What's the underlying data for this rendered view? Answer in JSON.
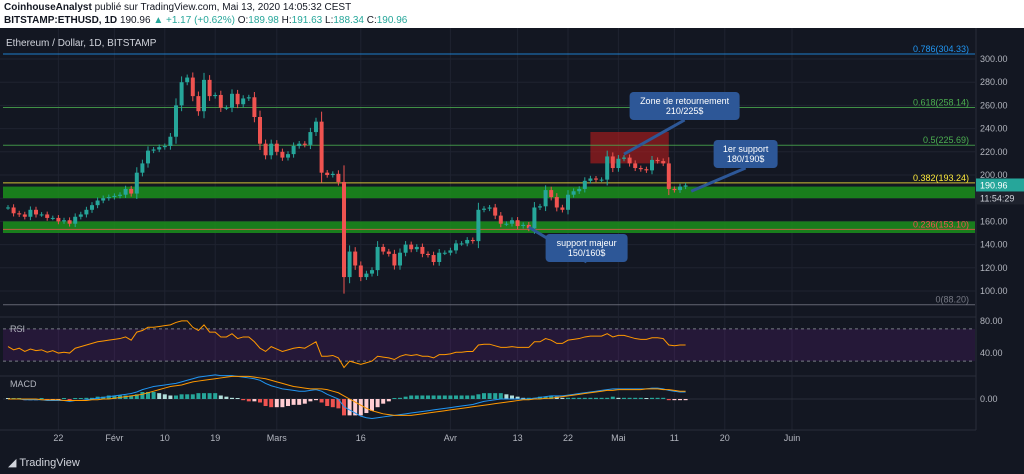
{
  "header": {
    "author": "CoinhouseAnalyst",
    "published": "publié sur TradingView.com, Mai 13, 2020 14:05:32 CEST",
    "symbol": "BITSTAMP:ETHUSD, 1D",
    "last": "190.96",
    "change": "+1.17 (+0.62%)",
    "o_label": "O:",
    "o": "189.98",
    "h_label": "H:",
    "h": "191.63",
    "l_label": "L:",
    "l": "188.34",
    "c_label": "C:",
    "c": "190.96"
  },
  "chart_title": "Ethereum / Dollar, 1D, BITSTAMP",
  "footer": {
    "brand": "TradingView"
  },
  "colors": {
    "bg": "#131722",
    "up": "#26a69a",
    "down": "#ef5350",
    "zone": "#1b8f1b",
    "fib": "#2196f3",
    "callout": "#2d5797"
  },
  "chart_data": {
    "type": "candlestick",
    "title": "Ethereum / Dollar, 1D, BITSTAMP",
    "ylim": [
      80,
      310
    ],
    "y_ticks": [
      100,
      120,
      140,
      160,
      180,
      200,
      220,
      240,
      260,
      280,
      300
    ],
    "y_tick_labels": [
      "100.00",
      "120.00",
      "140.00",
      "160.00",
      "180.00",
      "200.00",
      "220.00",
      "240.00",
      "260.00",
      "280.00",
      "300.00"
    ],
    "x_labels": [
      "22",
      "Févr",
      "10",
      "19",
      "Mars",
      "16",
      "Avr",
      "13",
      "22",
      "Mai",
      "11",
      "20",
      "Juin"
    ],
    "x_label_dates": [
      "2020-01-22",
      "2020-02-01",
      "2020-02-10",
      "2020-02-19",
      "2020-03-01",
      "2020-03-16",
      "2020-04-01",
      "2020-04-13",
      "2020-04-22",
      "2020-05-01",
      "2020-05-11",
      "2020-05-20",
      "2020-06-01"
    ],
    "closes": [
      [
        "2020-01-13",
        172
      ],
      [
        "2020-01-14",
        167
      ],
      [
        "2020-01-15",
        166
      ],
      [
        "2020-01-16",
        164
      ],
      [
        "2020-01-17",
        170
      ],
      [
        "2020-01-18",
        166
      ],
      [
        "2020-01-19",
        166
      ],
      [
        "2020-01-20",
        163
      ],
      [
        "2020-01-21",
        163
      ],
      [
        "2020-01-22",
        160
      ],
      [
        "2020-01-23",
        161
      ],
      [
        "2020-01-24",
        158
      ],
      [
        "2020-01-25",
        164
      ],
      [
        "2020-01-26",
        166
      ],
      [
        "2020-01-27",
        170
      ],
      [
        "2020-01-28",
        174
      ],
      [
        "2020-01-29",
        178
      ],
      [
        "2020-01-30",
        180
      ],
      [
        "2020-01-31",
        181
      ],
      [
        "2020-02-01",
        182
      ],
      [
        "2020-02-02",
        183
      ],
      [
        "2020-02-03",
        188
      ],
      [
        "2020-02-04",
        184
      ],
      [
        "2020-02-05",
        202
      ],
      [
        "2020-02-06",
        210
      ],
      [
        "2020-02-07",
        221
      ],
      [
        "2020-02-08",
        222
      ],
      [
        "2020-02-09",
        224
      ],
      [
        "2020-02-10",
        225
      ],
      [
        "2020-02-11",
        233
      ],
      [
        "2020-02-12",
        260
      ],
      [
        "2020-02-13",
        280
      ],
      [
        "2020-02-14",
        284
      ],
      [
        "2020-02-15",
        268
      ],
      [
        "2020-02-16",
        255
      ],
      [
        "2020-02-17",
        282
      ],
      [
        "2020-02-18",
        268
      ],
      [
        "2020-02-19",
        269
      ],
      [
        "2020-02-20",
        258
      ],
      [
        "2020-02-21",
        258
      ],
      [
        "2020-02-22",
        270
      ],
      [
        "2020-02-23",
        261
      ],
      [
        "2020-02-24",
        266
      ],
      [
        "2020-02-25",
        267
      ],
      [
        "2020-02-26",
        250
      ],
      [
        "2020-02-27",
        227
      ],
      [
        "2020-02-28",
        217
      ],
      [
        "2020-02-29",
        227
      ],
      [
        "2020-03-01",
        220
      ],
      [
        "2020-03-02",
        215
      ],
      [
        "2020-03-03",
        218
      ],
      [
        "2020-03-04",
        225
      ],
      [
        "2020-03-05",
        227
      ],
      [
        "2020-03-06",
        226
      ],
      [
        "2020-03-07",
        237
      ],
      [
        "2020-03-08",
        246
      ],
      [
        "2020-03-09",
        202
      ],
      [
        "2020-03-10",
        200
      ],
      [
        "2020-03-11",
        201
      ],
      [
        "2020-03-12",
        194
      ],
      [
        "2020-03-13",
        112
      ],
      [
        "2020-03-14",
        134
      ],
      [
        "2020-03-15",
        122
      ],
      [
        "2020-03-16",
        112
      ],
      [
        "2020-03-17",
        115
      ],
      [
        "2020-03-18",
        118
      ],
      [
        "2020-03-19",
        138
      ],
      [
        "2020-03-20",
        134
      ],
      [
        "2020-03-21",
        132
      ],
      [
        "2020-03-22",
        122
      ],
      [
        "2020-03-23",
        133
      ],
      [
        "2020-03-24",
        140
      ],
      [
        "2020-03-25",
        136
      ],
      [
        "2020-03-26",
        138
      ],
      [
        "2020-03-27",
        132
      ],
      [
        "2020-03-28",
        131
      ],
      [
        "2020-03-29",
        125
      ],
      [
        "2020-03-30",
        133
      ],
      [
        "2020-03-31",
        133
      ],
      [
        "2020-04-01",
        135
      ],
      [
        "2020-04-02",
        141
      ],
      [
        "2020-04-03",
        141
      ],
      [
        "2020-04-04",
        144
      ],
      [
        "2020-04-05",
        143
      ],
      [
        "2020-04-06",
        170
      ],
      [
        "2020-04-07",
        171
      ],
      [
        "2020-04-08",
        172
      ],
      [
        "2020-04-09",
        165
      ],
      [
        "2020-04-10",
        158
      ],
      [
        "2020-04-11",
        158
      ],
      [
        "2020-04-12",
        161
      ],
      [
        "2020-04-13",
        156
      ],
      [
        "2020-04-14",
        157
      ],
      [
        "2020-04-15",
        154
      ],
      [
        "2020-04-16",
        172
      ],
      [
        "2020-04-17",
        173
      ],
      [
        "2020-04-18",
        187
      ],
      [
        "2020-04-19",
        181
      ],
      [
        "2020-04-20",
        172
      ],
      [
        "2020-04-21",
        170
      ],
      [
        "2020-04-22",
        183
      ],
      [
        "2020-04-23",
        186
      ],
      [
        "2020-04-24",
        188
      ],
      [
        "2020-04-25",
        195
      ],
      [
        "2020-04-26",
        197
      ],
      [
        "2020-04-27",
        196
      ],
      [
        "2020-04-28",
        196
      ],
      [
        "2020-04-29",
        216
      ],
      [
        "2020-04-30",
        206
      ],
      [
        "2020-05-01",
        214
      ],
      [
        "2020-05-02",
        215
      ],
      [
        "2020-05-03",
        210
      ],
      [
        "2020-05-04",
        206
      ],
      [
        "2020-05-05",
        205
      ],
      [
        "2020-05-06",
        204
      ],
      [
        "2020-05-07",
        213
      ],
      [
        "2020-05-08",
        212
      ],
      [
        "2020-05-09",
        210
      ],
      [
        "2020-05-10",
        188
      ],
      [
        "2020-05-11",
        187
      ],
      [
        "2020-05-12",
        190
      ],
      [
        "2020-05-13",
        191
      ]
    ],
    "fib_levels": [
      {
        "ratio": "0.786",
        "price": 304.33,
        "label": "0.786(304.33)"
      },
      {
        "ratio": "0.618",
        "price": 258.14,
        "label": "0.618(258.14)"
      },
      {
        "ratio": "0.5",
        "price": 225.69,
        "label": "0.5(225.69)"
      },
      {
        "ratio": "0.382",
        "price": 193.24,
        "label": "0.382(193.24)"
      },
      {
        "ratio": "0.236",
        "price": 153.1,
        "label": "0.236(153.10)"
      },
      {
        "ratio": "0",
        "price": 88.2,
        "label": "0(88.20)"
      }
    ],
    "support_zones": [
      {
        "low": 180,
        "high": 190,
        "label": "1er support\n180/190$"
      },
      {
        "low": 150,
        "high": 160,
        "label": "support majeur\n150/160$"
      }
    ],
    "reversal_zone": {
      "low": 210,
      "high": 225,
      "label": "Zone de retournement\n210/225$"
    },
    "price_tag": {
      "value": "190.96",
      "timer": "11:54:29"
    },
    "rsi": {
      "label": "RSI",
      "levels": [
        70,
        30
      ],
      "y_tick_labels": [
        "80.00",
        "40.00"
      ],
      "values": [
        48,
        44,
        46,
        42,
        45,
        43,
        44,
        41,
        43,
        40,
        41,
        40,
        46,
        48,
        50,
        52,
        54,
        55,
        56,
        57,
        58,
        60,
        56,
        66,
        68,
        72,
        72,
        73,
        74,
        75,
        78,
        80,
        80,
        72,
        68,
        75,
        66,
        66,
        60,
        60,
        64,
        58,
        60,
        60,
        54,
        46,
        42,
        48,
        45,
        42,
        44,
        46,
        47,
        46,
        50,
        54,
        36,
        36,
        37,
        34,
        22,
        30,
        28,
        26,
        28,
        30,
        36,
        35,
        34,
        32,
        36,
        38,
        37,
        38,
        36,
        36,
        34,
        38,
        38,
        39,
        41,
        41,
        42,
        42,
        50,
        51,
        51,
        49,
        47,
        47,
        48,
        47,
        47,
        47,
        54,
        54,
        58,
        56,
        52,
        52,
        56,
        57,
        58,
        60,
        61,
        61,
        61,
        64,
        60,
        62,
        62,
        60,
        58,
        57,
        57,
        59,
        59,
        58,
        50,
        49,
        50,
        50
      ]
    },
    "macd": {
      "label": "MACD",
      "y_tick_labels": [
        "0.00"
      ],
      "macd": [
        0,
        0,
        0,
        -1,
        -1,
        -1,
        -1,
        -2,
        -2,
        -2,
        -2,
        -3,
        -2,
        -2,
        -1,
        0,
        1,
        2,
        3,
        4,
        5,
        6,
        7,
        9,
        12,
        14,
        16,
        17,
        18,
        19,
        20,
        22,
        24,
        26,
        28,
        29,
        30,
        31,
        30,
        30,
        30,
        29,
        28,
        27,
        26,
        24,
        20,
        17,
        15,
        13,
        12,
        11,
        10,
        10,
        11,
        12,
        10,
        6,
        3,
        0,
        -10,
        -14,
        -18,
        -22,
        -24,
        -25,
        -24,
        -23,
        -22,
        -21,
        -20,
        -19,
        -18,
        -17,
        -16,
        -15,
        -14,
        -13,
        -12,
        -11,
        -10,
        -9,
        -8,
        -7,
        -5,
        -3,
        -2,
        -1,
        0,
        0,
        0,
        0,
        0,
        0,
        1,
        2,
        3,
        4,
        4,
        4,
        5,
        6,
        7,
        8,
        9,
        10,
        11,
        12,
        13,
        13,
        13,
        13,
        13,
        13,
        13,
        14,
        14,
        13,
        11,
        10,
        9,
        9
      ],
      "signal": [
        0,
        0,
        0,
        0,
        0,
        0,
        -1,
        -1,
        -1,
        -1,
        -2,
        -2,
        -2,
        -2,
        -2,
        -1,
        -1,
        0,
        0,
        1,
        2,
        3,
        4,
        5,
        6,
        8,
        10,
        12,
        14,
        16,
        17,
        18,
        20,
        22,
        23,
        24,
        25,
        26,
        27,
        28,
        29,
        29,
        29,
        29,
        28,
        27,
        26,
        24,
        22,
        20,
        18,
        16,
        15,
        14,
        13,
        13,
        13,
        12,
        10,
        8,
        4,
        0,
        -4,
        -8,
        -12,
        -15,
        -17,
        -19,
        -20,
        -21,
        -21,
        -21,
        -21,
        -20,
        -19,
        -18,
        -17,
        -16,
        -15,
        -14,
        -13,
        -12,
        -11,
        -10,
        -9,
        -8,
        -7,
        -6,
        -5,
        -4,
        -3,
        -2,
        -1,
        -1,
        0,
        0,
        1,
        1,
        2,
        3,
        4,
        5,
        6,
        7,
        8,
        9,
        10,
        11,
        11,
        12,
        12,
        12,
        12,
        12,
        13,
        13,
        13,
        12,
        12,
        11,
        10,
        10
      ]
    }
  }
}
